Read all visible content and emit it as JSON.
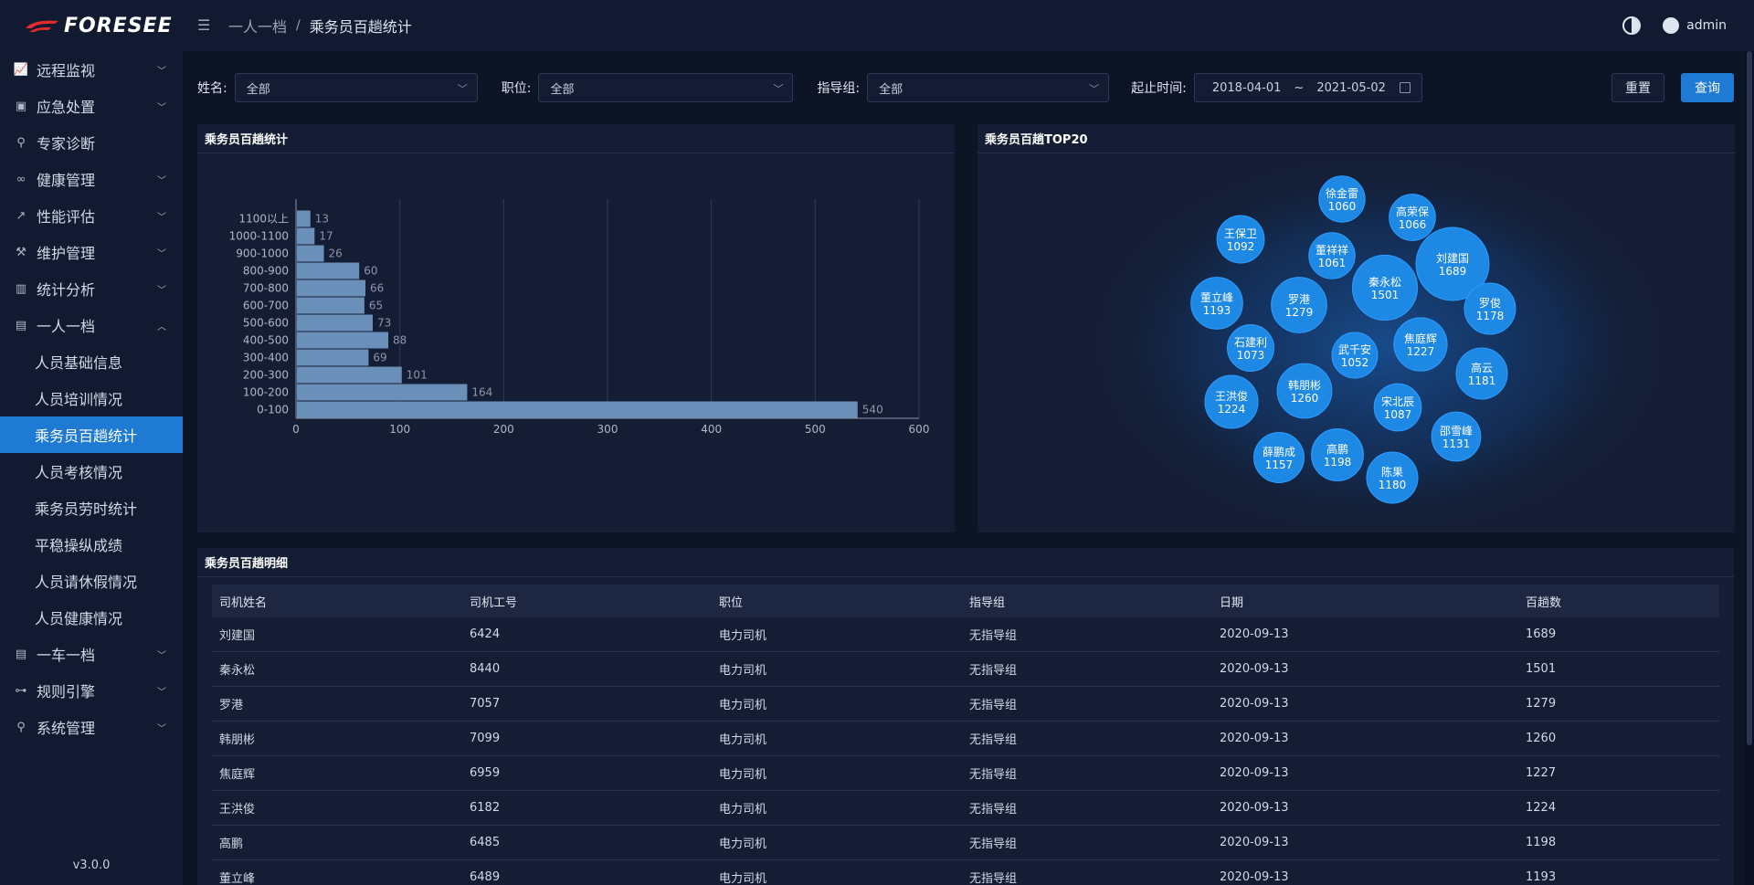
{
  "app": {
    "logo_text": "FORESEE",
    "version": "v3.0.0"
  },
  "header": {
    "breadcrumb": [
      "一人一档",
      "乘务员百趟统计"
    ],
    "user": "admin"
  },
  "sidebar": {
    "items": [
      {
        "label": "远程监视",
        "icon": "monitor-chart-icon",
        "expandable": true
      },
      {
        "label": "应急处置",
        "icon": "briefcase-icon",
        "expandable": true
      },
      {
        "label": "专家诊断",
        "icon": "link-icon",
        "expandable": false
      },
      {
        "label": "健康管理",
        "icon": "chain-icon",
        "expandable": true
      },
      {
        "label": "性能评估",
        "icon": "trend-icon",
        "expandable": true
      },
      {
        "label": "维护管理",
        "icon": "wrench-icon",
        "expandable": true
      },
      {
        "label": "统计分析",
        "icon": "bar-chart-icon",
        "expandable": true
      },
      {
        "label": "一人一档",
        "icon": "file-icon",
        "expandable": true,
        "open": true
      },
      {
        "label": "一车一档",
        "icon": "file-icon",
        "expandable": true
      },
      {
        "label": "规则引擎",
        "icon": "flow-icon",
        "expandable": true
      },
      {
        "label": "系统管理",
        "icon": "search-key-icon",
        "expandable": true
      }
    ],
    "submenu": [
      {
        "label": "人员基础信息"
      },
      {
        "label": "人员培训情况"
      },
      {
        "label": "乘务员百趟统计",
        "active": true
      },
      {
        "label": "人员考核情况"
      },
      {
        "label": "乘务员劳时统计"
      },
      {
        "label": "平稳操纵成绩"
      },
      {
        "label": "人员请休假情况"
      },
      {
        "label": "人员健康情况"
      }
    ]
  },
  "filter": {
    "name_label": "姓名:",
    "name_value": "全部",
    "position_label": "职位:",
    "position_value": "全部",
    "group_label": "指导组:",
    "group_value": "全部",
    "date_label": "起止时间:",
    "date_start": "2018-04-01",
    "date_sep": "~",
    "date_end": "2021-05-02",
    "reset_label": "重置",
    "query_label": "查询"
  },
  "panels": {
    "bar_title": "乘务员百趟统计",
    "bubble_title": "乘务员百趟TOP20",
    "table_title": "乘务员百趟明细"
  },
  "chart_data": [
    {
      "type": "bar",
      "orientation": "horizontal",
      "categories": [
        "0-100",
        "100-200",
        "200-300",
        "300-400",
        "400-500",
        "500-600",
        "600-700",
        "700-800",
        "800-900",
        "900-1000",
        "1000-1100",
        "1100以上"
      ],
      "values": [
        540,
        164,
        101,
        69,
        88,
        73,
        65,
        66,
        60,
        26,
        17,
        13
      ],
      "xlim": [
        0,
        600
      ],
      "xticks": [
        0,
        100,
        200,
        300,
        400,
        500,
        600
      ],
      "grid": true,
      "bar_color": "#6a8fb8"
    },
    {
      "type": "bubble",
      "points": [
        {
          "name": "刘建国",
          "value": 1689
        },
        {
          "name": "秦永松",
          "value": 1501
        },
        {
          "name": "罗港",
          "value": 1279
        },
        {
          "name": "韩朋彬",
          "value": 1260
        },
        {
          "name": "焦庭辉",
          "value": 1227
        },
        {
          "name": "王洪俊",
          "value": 1224
        },
        {
          "name": "高鹏",
          "value": 1198
        },
        {
          "name": "董立峰",
          "value": 1193
        },
        {
          "name": "高云",
          "value": 1181
        },
        {
          "name": "陈果",
          "value": 1180
        },
        {
          "name": "罗俊",
          "value": 1178
        },
        {
          "name": "薛鹏成",
          "value": 1157
        },
        {
          "name": "邵雪峰",
          "value": 1131
        },
        {
          "name": "王保卫",
          "value": 1092
        },
        {
          "name": "宋北辰",
          "value": 1087
        },
        {
          "name": "石建利",
          "value": 1073
        },
        {
          "name": "高荣保",
          "value": 1066
        },
        {
          "name": "董祥祥",
          "value": 1061
        },
        {
          "name": "徐金雷",
          "value": 1060
        },
        {
          "name": "武千安",
          "value": 1052
        }
      ],
      "bubble_color": "#1e88e5"
    }
  ],
  "table": {
    "columns": [
      "司机姓名",
      "司机工号",
      "职位",
      "指导组",
      "日期",
      "百趟数"
    ],
    "rows": [
      [
        "刘建国",
        "6424",
        "电力司机",
        "无指导组",
        "2020-09-13",
        "1689"
      ],
      [
        "秦永松",
        "8440",
        "电力司机",
        "无指导组",
        "2020-09-13",
        "1501"
      ],
      [
        "罗港",
        "7057",
        "电力司机",
        "无指导组",
        "2020-09-13",
        "1279"
      ],
      [
        "韩朋彬",
        "7099",
        "电力司机",
        "无指导组",
        "2020-09-13",
        "1260"
      ],
      [
        "焦庭辉",
        "6959",
        "电力司机",
        "无指导组",
        "2020-09-13",
        "1227"
      ],
      [
        "王洪俊",
        "6182",
        "电力司机",
        "无指导组",
        "2020-09-13",
        "1224"
      ],
      [
        "高鹏",
        "6485",
        "电力司机",
        "无指导组",
        "2020-09-13",
        "1198"
      ],
      [
        "董立峰",
        "6489",
        "电力司机",
        "无指导组",
        "2020-09-13",
        "1193"
      ]
    ]
  }
}
